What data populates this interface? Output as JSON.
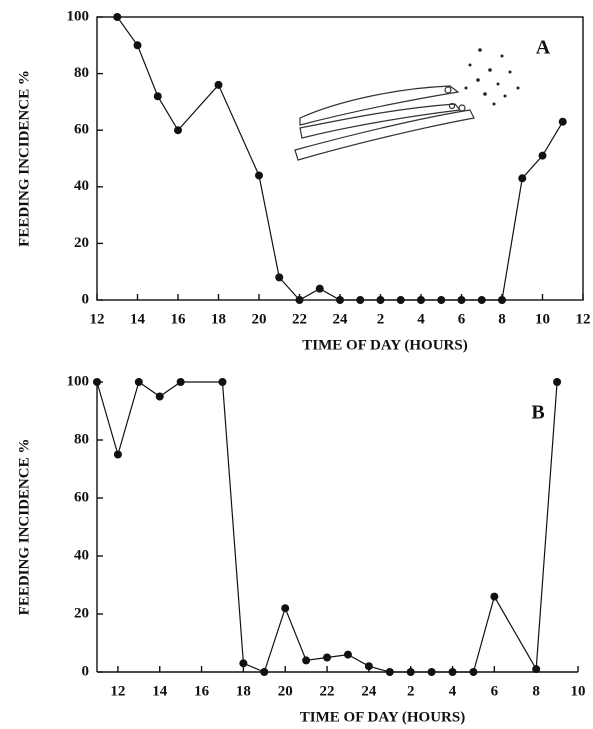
{
  "chart_data": [
    {
      "type": "line",
      "panel_label": "A",
      "y_label": "FEEDING INCIDENCE %",
      "x_label": "TIME OF DAY (HOURS)",
      "x": [
        13,
        14,
        15,
        16,
        18,
        20,
        21,
        22,
        23,
        24,
        25,
        26,
        27,
        28,
        29,
        30,
        31,
        32,
        33,
        34,
        35
      ],
      "series": [
        {
          "color": "#111111",
          "values": [
            100,
            90,
            72,
            60,
            76,
            44,
            8,
            0,
            4,
            0,
            0,
            0,
            0,
            0,
            0,
            0,
            0,
            0,
            43,
            51,
            63
          ]
        }
      ],
      "xlim": [
        12,
        36
      ],
      "xticks": [
        12,
        14,
        16,
        18,
        20,
        22,
        24,
        {
          "value": 26,
          "label": "2"
        },
        {
          "value": 28,
          "label": "4"
        },
        {
          "value": 30,
          "label": "6"
        },
        {
          "value": 32,
          "label": "8"
        },
        {
          "value": 34,
          "label": "10"
        },
        {
          "value": 36,
          "label": "12"
        }
      ],
      "ylim": [
        0,
        100
      ],
      "yticks": [
        0,
        20,
        40,
        60,
        80,
        100
      ]
    },
    {
      "type": "line",
      "panel_label": "B",
      "y_label": "FEEDING INCIDENCE %",
      "x_label": "TIME OF DAY (HOURS)",
      "x": [
        11,
        12,
        13,
        14,
        15,
        17,
        18,
        19,
        20,
        21,
        22,
        23,
        24,
        25,
        26,
        27,
        28,
        29,
        30,
        32,
        33
      ],
      "series": [
        {
          "color": "#111111",
          "values": [
            100,
            75,
            100,
            95,
            100,
            100,
            3,
            0,
            22,
            4,
            5,
            6,
            2,
            0,
            0,
            0,
            0,
            0,
            26,
            1,
            100
          ]
        }
      ],
      "xlim": [
        11,
        34
      ],
      "xticks": [
        12,
        14,
        16,
        18,
        20,
        22,
        24,
        {
          "value": 26,
          "label": "2"
        },
        {
          "value": 28,
          "label": "4"
        },
        {
          "value": 30,
          "label": "6"
        },
        {
          "value": 32,
          "label": "8"
        },
        {
          "value": 34,
          "label": "10"
        }
      ],
      "ylim": [
        0,
        100
      ],
      "yticks": [
        0,
        20,
        40,
        60,
        80,
        100
      ]
    }
  ]
}
